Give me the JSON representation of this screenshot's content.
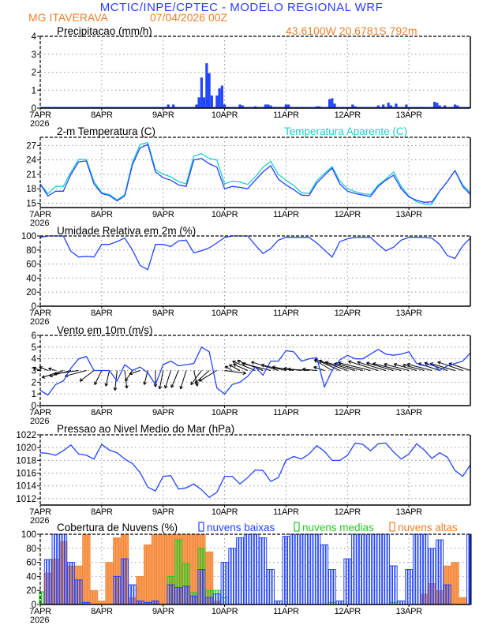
{
  "header": {
    "title": "MCTIC/INPE/CPTEC - MODELO REGIONAL WRF",
    "location": "MG ITAVERAVA",
    "run": "07/04/2026 00Z",
    "coords": "43.6100W 20.6781S 792m"
  },
  "colors": {
    "title": "#2a3cff",
    "orange": "#f07f2a",
    "series_blue": "#2244ff",
    "cyan": "#1ccfcf",
    "green": "#22cc22",
    "grid": "#999999"
  },
  "time_axis": {
    "start": "7APR 00Z",
    "step_hours": 3,
    "tick_labels": [
      "7APR",
      "8APR",
      "9APR",
      "10APR",
      "11APR",
      "12APR",
      "13APR"
    ],
    "year_label": "2026"
  },
  "chart_data": [
    {
      "type": "bar",
      "title": "Precipitacao (mm/h)",
      "ylim": [
        0,
        4
      ],
      "y_ticks": [
        "0",
        "1",
        "2",
        "3",
        "4"
      ],
      "grid": true,
      "bars": [
        [
          "9APR 02Z",
          0.2
        ],
        [
          "9APR 04Z",
          0.2
        ],
        [
          "9APR 13Z",
          0.2
        ],
        [
          "9APR 14Z",
          0.6
        ],
        [
          "9APR 15Z",
          1.7
        ],
        [
          "9APR 16Z",
          0.6
        ],
        [
          "9APR 17Z",
          2.5
        ],
        [
          "9APR 18Z",
          1.95
        ],
        [
          "9APR 19Z",
          0.7
        ],
        [
          "9APR 21Z",
          0.7
        ],
        [
          "9APR 22Z",
          1.1
        ],
        [
          "9APR 23Z",
          1.25
        ],
        [
          "10APR 00Z",
          0.2
        ],
        [
          "10APR 06Z",
          0.2
        ],
        [
          "10APR 07Z",
          0.15
        ],
        [
          "10APR 12Z",
          0.1
        ],
        [
          "10APR 16Z",
          0.2
        ],
        [
          "10APR 17Z",
          0.2
        ],
        [
          "10APR 18Z",
          0.15
        ],
        [
          "11APR 00Z",
          0.2
        ],
        [
          "11APR 01Z",
          0.2
        ],
        [
          "11APR 12Z",
          0.1
        ],
        [
          "11APR 13Z",
          0.1
        ],
        [
          "11APR 17Z",
          0.5
        ],
        [
          "11APR 18Z",
          0.55
        ],
        [
          "11APR 19Z",
          0.25
        ],
        [
          "12APR 02Z",
          0.2
        ],
        [
          "12APR 03Z",
          0.1
        ],
        [
          "12APR 12Z",
          0.15
        ],
        [
          "12APR 14Z",
          0.2
        ],
        [
          "12APR 16Z",
          0.3
        ],
        [
          "12APR 17Z",
          0.15
        ],
        [
          "12APR 19Z",
          0.25
        ],
        [
          "12APR 23Z",
          0.2
        ],
        [
          "13APR 10Z",
          0.35
        ],
        [
          "13APR 11Z",
          0.3
        ],
        [
          "13APR 12Z",
          0.15
        ],
        [
          "13APR 14Z",
          0.15
        ],
        [
          "13APR 18Z",
          0.2
        ],
        [
          "13APR 19Z",
          0.15
        ]
      ]
    },
    {
      "type": "line",
      "title": "2-m Temperatura (C)",
      "ylim": [
        14.1,
        28.7
      ],
      "y_ticks": [
        "15",
        "18",
        "21",
        "24",
        "27"
      ],
      "grid": true,
      "series": [
        {
          "name": "2-m Temperatura (C)",
          "color": "#2244ff",
          "values": [
            19,
            16.5,
            17.5,
            17.5,
            21,
            23.6,
            23.8,
            19,
            17,
            16.6,
            15.5,
            16.5,
            23,
            26.5,
            27.2,
            21.5,
            20.3,
            19.8,
            18.8,
            18.5,
            24,
            24.3,
            23.2,
            22.5,
            18,
            18.5,
            18.3,
            18,
            19.8,
            21.5,
            22.8,
            20,
            18.8,
            17.8,
            16.7,
            16.6,
            19.2,
            20.8,
            22.3,
            19,
            17.5,
            17,
            16.7,
            16.4,
            18.5,
            19.8,
            20.8,
            18,
            16.3,
            15.6,
            15.2,
            15.3,
            17.5,
            19.5,
            21.8,
            18.5,
            16.8
          ]
        },
        {
          "name": "Temperatura Aparente (C)",
          "color": "#1ccfcf",
          "values": [
            19,
            17,
            18.5,
            18.5,
            21.5,
            24.1,
            24.1,
            19.5,
            17.2,
            16.8,
            15.7,
            16.8,
            23.5,
            27.2,
            27.6,
            22,
            21,
            20.5,
            19.5,
            19,
            24.8,
            25.3,
            24.3,
            24,
            19,
            19.6,
            19.4,
            18.9,
            20.5,
            22.5,
            23.7,
            21,
            19.8,
            18.7,
            17.2,
            17,
            19.7,
            21.2,
            22.6,
            19.6,
            18,
            17.4,
            17,
            16.8,
            18.8,
            20,
            21.5,
            18.5,
            16.5,
            15.3,
            14.8,
            14.8,
            17.5,
            19.5,
            21.8,
            18.8,
            17.2
          ]
        }
      ]
    },
    {
      "type": "line",
      "title": "Umidade Relativa em 2m (%)",
      "ylim": [
        0,
        100
      ],
      "y_ticks": [
        "0",
        "20",
        "40",
        "60",
        "80",
        "100"
      ],
      "grid": true,
      "series": [
        {
          "color": "#2244ff",
          "values": [
            98,
            100,
            100,
            100,
            78,
            70,
            71,
            70,
            88,
            88,
            92,
            97,
            80,
            58,
            52,
            88,
            88,
            85,
            93,
            94,
            76,
            79,
            83,
            90,
            98,
            100,
            100,
            100,
            87,
            75,
            82,
            94,
            98,
            98,
            98,
            98,
            90,
            80,
            70,
            92,
            96,
            98,
            98,
            98,
            88,
            79,
            84,
            94,
            98,
            98,
            98,
            97,
            88,
            72,
            68,
            86,
            97
          ]
        }
      ]
    },
    {
      "type": "line",
      "title": "Vento em 10m (m/s)",
      "ylim": [
        0,
        6
      ],
      "y_ticks": [
        "0",
        "1",
        "2",
        "3",
        "4",
        "5",
        "6"
      ],
      "grid": true,
      "series": [
        {
          "color": "#2244ff",
          "values": [
            1.3,
            0.9,
            1.8,
            2.1,
            3.2,
            4.0,
            4.2,
            3.0,
            3.0,
            3.0,
            2.1,
            3.5,
            3.0,
            3.3,
            2.8,
            1.8,
            3.5,
            3.8,
            3.4,
            3.5,
            3.6,
            5.0,
            4.6,
            1.5,
            1.0,
            1.8,
            2.0,
            2.5,
            3.3,
            2.6,
            3.8,
            3.8,
            4.7,
            4.6,
            3.8,
            4.0,
            4.1,
            1.6,
            3.0,
            3.9,
            4.3,
            4.0,
            4.0,
            4.4,
            4.8,
            4.4,
            4.3,
            4.4,
            4.6,
            3.6,
            3.4,
            3.6,
            3.0,
            3.4,
            3.6,
            3.8,
            4.5
          ]
        }
      ],
      "vectors": {
        "baseline": 3,
        "uv": [
          [
            -1,
            0.4
          ],
          [
            -1.2,
            0.5
          ],
          [
            -1,
            0.3
          ],
          [
            -3,
            -1
          ],
          [
            -3,
            -0.8
          ],
          [
            -3.5,
            -0.5
          ],
          [
            -3,
            -0.8
          ],
          [
            -2,
            -1.5
          ],
          [
            -1,
            -2
          ],
          [
            -0.5,
            -2.2
          ],
          [
            -0.3,
            -2.8
          ],
          [
            0.3,
            -2.5
          ],
          [
            -1,
            -1.5
          ],
          [
            -1.5,
            -0.5
          ],
          [
            -0.5,
            -2
          ],
          [
            0,
            -2.3
          ],
          [
            -0.5,
            -2.6
          ],
          [
            -0.8,
            -2.5
          ],
          [
            -1,
            -2.4
          ],
          [
            -0.8,
            -2.6
          ],
          [
            0.5,
            -2.2
          ],
          [
            -1.5,
            -2
          ],
          [
            -2,
            -1.8
          ],
          [
            -2.5,
            -1.5
          ],
          [
            3,
            -0.4
          ],
          [
            -1,
            0.6
          ],
          [
            -1.5,
            0.8
          ],
          [
            -2,
            0.9
          ],
          [
            -3.2,
            1.3
          ],
          [
            -3.6,
            1.4
          ],
          [
            -4,
            1
          ],
          [
            -3.8,
            1.2
          ],
          [
            -3.5,
            0.8
          ],
          [
            -3,
            0.5
          ],
          [
            -2.5,
            0.3
          ],
          [
            -3,
            0.2
          ],
          [
            -2,
            0.2
          ],
          [
            -1.5,
            0.5
          ],
          [
            -2.5,
            1.5
          ],
          [
            -3.5,
            1.6
          ],
          [
            -4,
            1.4
          ],
          [
            -4.2,
            1.2
          ],
          [
            -4,
            1
          ],
          [
            -4.5,
            1.1
          ],
          [
            -4.2,
            1.3
          ],
          [
            -4,
            1.2
          ],
          [
            -3.8,
            1.1
          ],
          [
            -4,
            1
          ],
          [
            -3.5,
            0.9
          ],
          [
            -3.2,
            0.9
          ],
          [
            -3,
            0.8
          ],
          [
            -3.5,
            0.9
          ],
          [
            -3,
            1
          ],
          [
            -3.2,
            1.1
          ],
          [
            -3.5,
            1
          ],
          [
            -3.5,
            1.2
          ],
          [
            -3,
            1
          ]
        ]
      }
    },
    {
      "type": "line",
      "title": "Pressao ao Nivel Medio do Mar (hPa)",
      "ylim": [
        1011,
        1022
      ],
      "y_ticks": [
        "1012",
        "1014",
        "1016",
        "1018",
        "1020",
        "1022"
      ],
      "grid": true,
      "series": [
        {
          "color": "#2244ff",
          "values": [
            1019.2,
            1019.1,
            1018.8,
            1019.5,
            1020.4,
            1019.0,
            1018.8,
            1018.2,
            1020.5,
            1019.6,
            1019.2,
            1018.2,
            1017.5,
            1016.1,
            1013.8,
            1013.2,
            1015.5,
            1015.6,
            1013.5,
            1013.7,
            1014.3,
            1013.4,
            1012.2,
            1013.0,
            1015.5,
            1015.5,
            1014.3,
            1015.3,
            1016.5,
            1016.4,
            1014.7,
            1015.3,
            1018.0,
            1018.6,
            1018.2,
            1019.0,
            1020.3,
            1019.4,
            1018.0,
            1018.0,
            1018.8,
            1020.7,
            1020.5,
            1019.5,
            1020.6,
            1020.7,
            1019.3,
            1018.2,
            1019.0,
            1020.6,
            1019.6,
            1018.3,
            1019.2,
            1018.5,
            1016.4,
            1015.5,
            1017.3
          ]
        }
      ]
    },
    {
      "type": "bar",
      "title": "Cobertura de Nuvens (%)",
      "ylim": [
        0,
        100
      ],
      "y_ticks": [
        "0",
        "20",
        "40",
        "60",
        "80",
        "100"
      ],
      "grid": true,
      "legend": "top",
      "series": [
        {
          "name": "nuvens altas",
          "color": "#f07f2a",
          "values": [
            0,
            45,
            65,
            90,
            55,
            55,
            100,
            20,
            5,
            60,
            95,
            100,
            10,
            40,
            85,
            100,
            100,
            100,
            100,
            100,
            100,
            100,
            75,
            5,
            0,
            0,
            0,
            0,
            0,
            0,
            0,
            0,
            0,
            0,
            0,
            0,
            0,
            0,
            0,
            0,
            0,
            0,
            0,
            0,
            0,
            0,
            0,
            0,
            0,
            0,
            15,
            30,
            20,
            55,
            60,
            10,
            0
          ]
        },
        {
          "name": "nuvens medias",
          "color": "#22cc22",
          "values": [
            18,
            0,
            0,
            0,
            0,
            0,
            0,
            0,
            0,
            0,
            0,
            0,
            0,
            0,
            0,
            0,
            0,
            40,
            92,
            58,
            17,
            80,
            20,
            20,
            10,
            0,
            0,
            0,
            0,
            0,
            0,
            0,
            0,
            0,
            0,
            0,
            0,
            0,
            3,
            0,
            0,
            0,
            0,
            0,
            0,
            0,
            3,
            0,
            0,
            0,
            0,
            0,
            0,
            0,
            0,
            0,
            0
          ]
        },
        {
          "name": "nuvens baixas",
          "color": "#2244ff",
          "values": [
            0,
            64,
            100,
            100,
            60,
            35,
            3,
            0,
            0,
            0,
            40,
            65,
            28,
            5,
            3,
            5,
            0,
            28,
            24,
            26,
            12,
            50,
            10,
            15,
            60,
            80,
            95,
            100,
            100,
            95,
            50,
            5,
            97,
            100,
            100,
            100,
            100,
            85,
            50,
            5,
            65,
            100,
            100,
            100,
            100,
            100,
            55,
            5,
            50,
            100,
            100,
            80,
            92,
            28,
            0,
            0,
            100
          ]
        }
      ]
    }
  ]
}
